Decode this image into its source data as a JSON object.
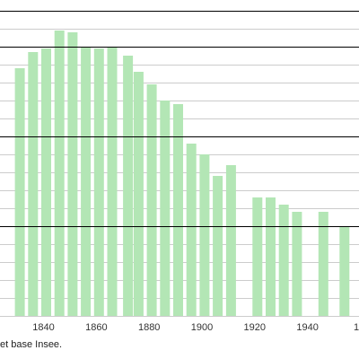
{
  "chart_data": {
    "type": "bar",
    "title": "",
    "xlabel": "",
    "ylabel": "",
    "x_tick_labels": [
      "1840",
      "1860",
      "1880",
      "1900",
      "1920",
      "1940",
      "1"
    ],
    "x": [
      1831,
      1836,
      1841,
      1846,
      1851,
      1856,
      1861,
      1866,
      1872,
      1876,
      1881,
      1886,
      1891,
      1896,
      1901,
      1906,
      1911,
      1921,
      1926,
      1931,
      1936,
      1946,
      1954
    ],
    "values": [
      1380,
      1470,
      1490,
      1590,
      1580,
      1500,
      1490,
      1500,
      1450,
      1360,
      1290,
      1200,
      1180,
      960,
      900,
      780,
      840,
      660,
      660,
      620,
      580,
      580,
      500
    ],
    "ylim": [
      0,
      1700
    ],
    "xlim": [
      1823.5,
      1959.5
    ],
    "grid": true,
    "major_gridlines": [
      500,
      1000,
      1500
    ],
    "minor_gridlines": [
      100,
      200,
      300,
      400,
      600,
      700,
      800,
      900,
      1100,
      1200,
      1300,
      1400,
      1600
    ],
    "colors": {
      "bar": "#b3e6b5",
      "major_grid": "#000000",
      "minor_grid": "#cccccc"
    },
    "source_note": "et base Insee."
  }
}
